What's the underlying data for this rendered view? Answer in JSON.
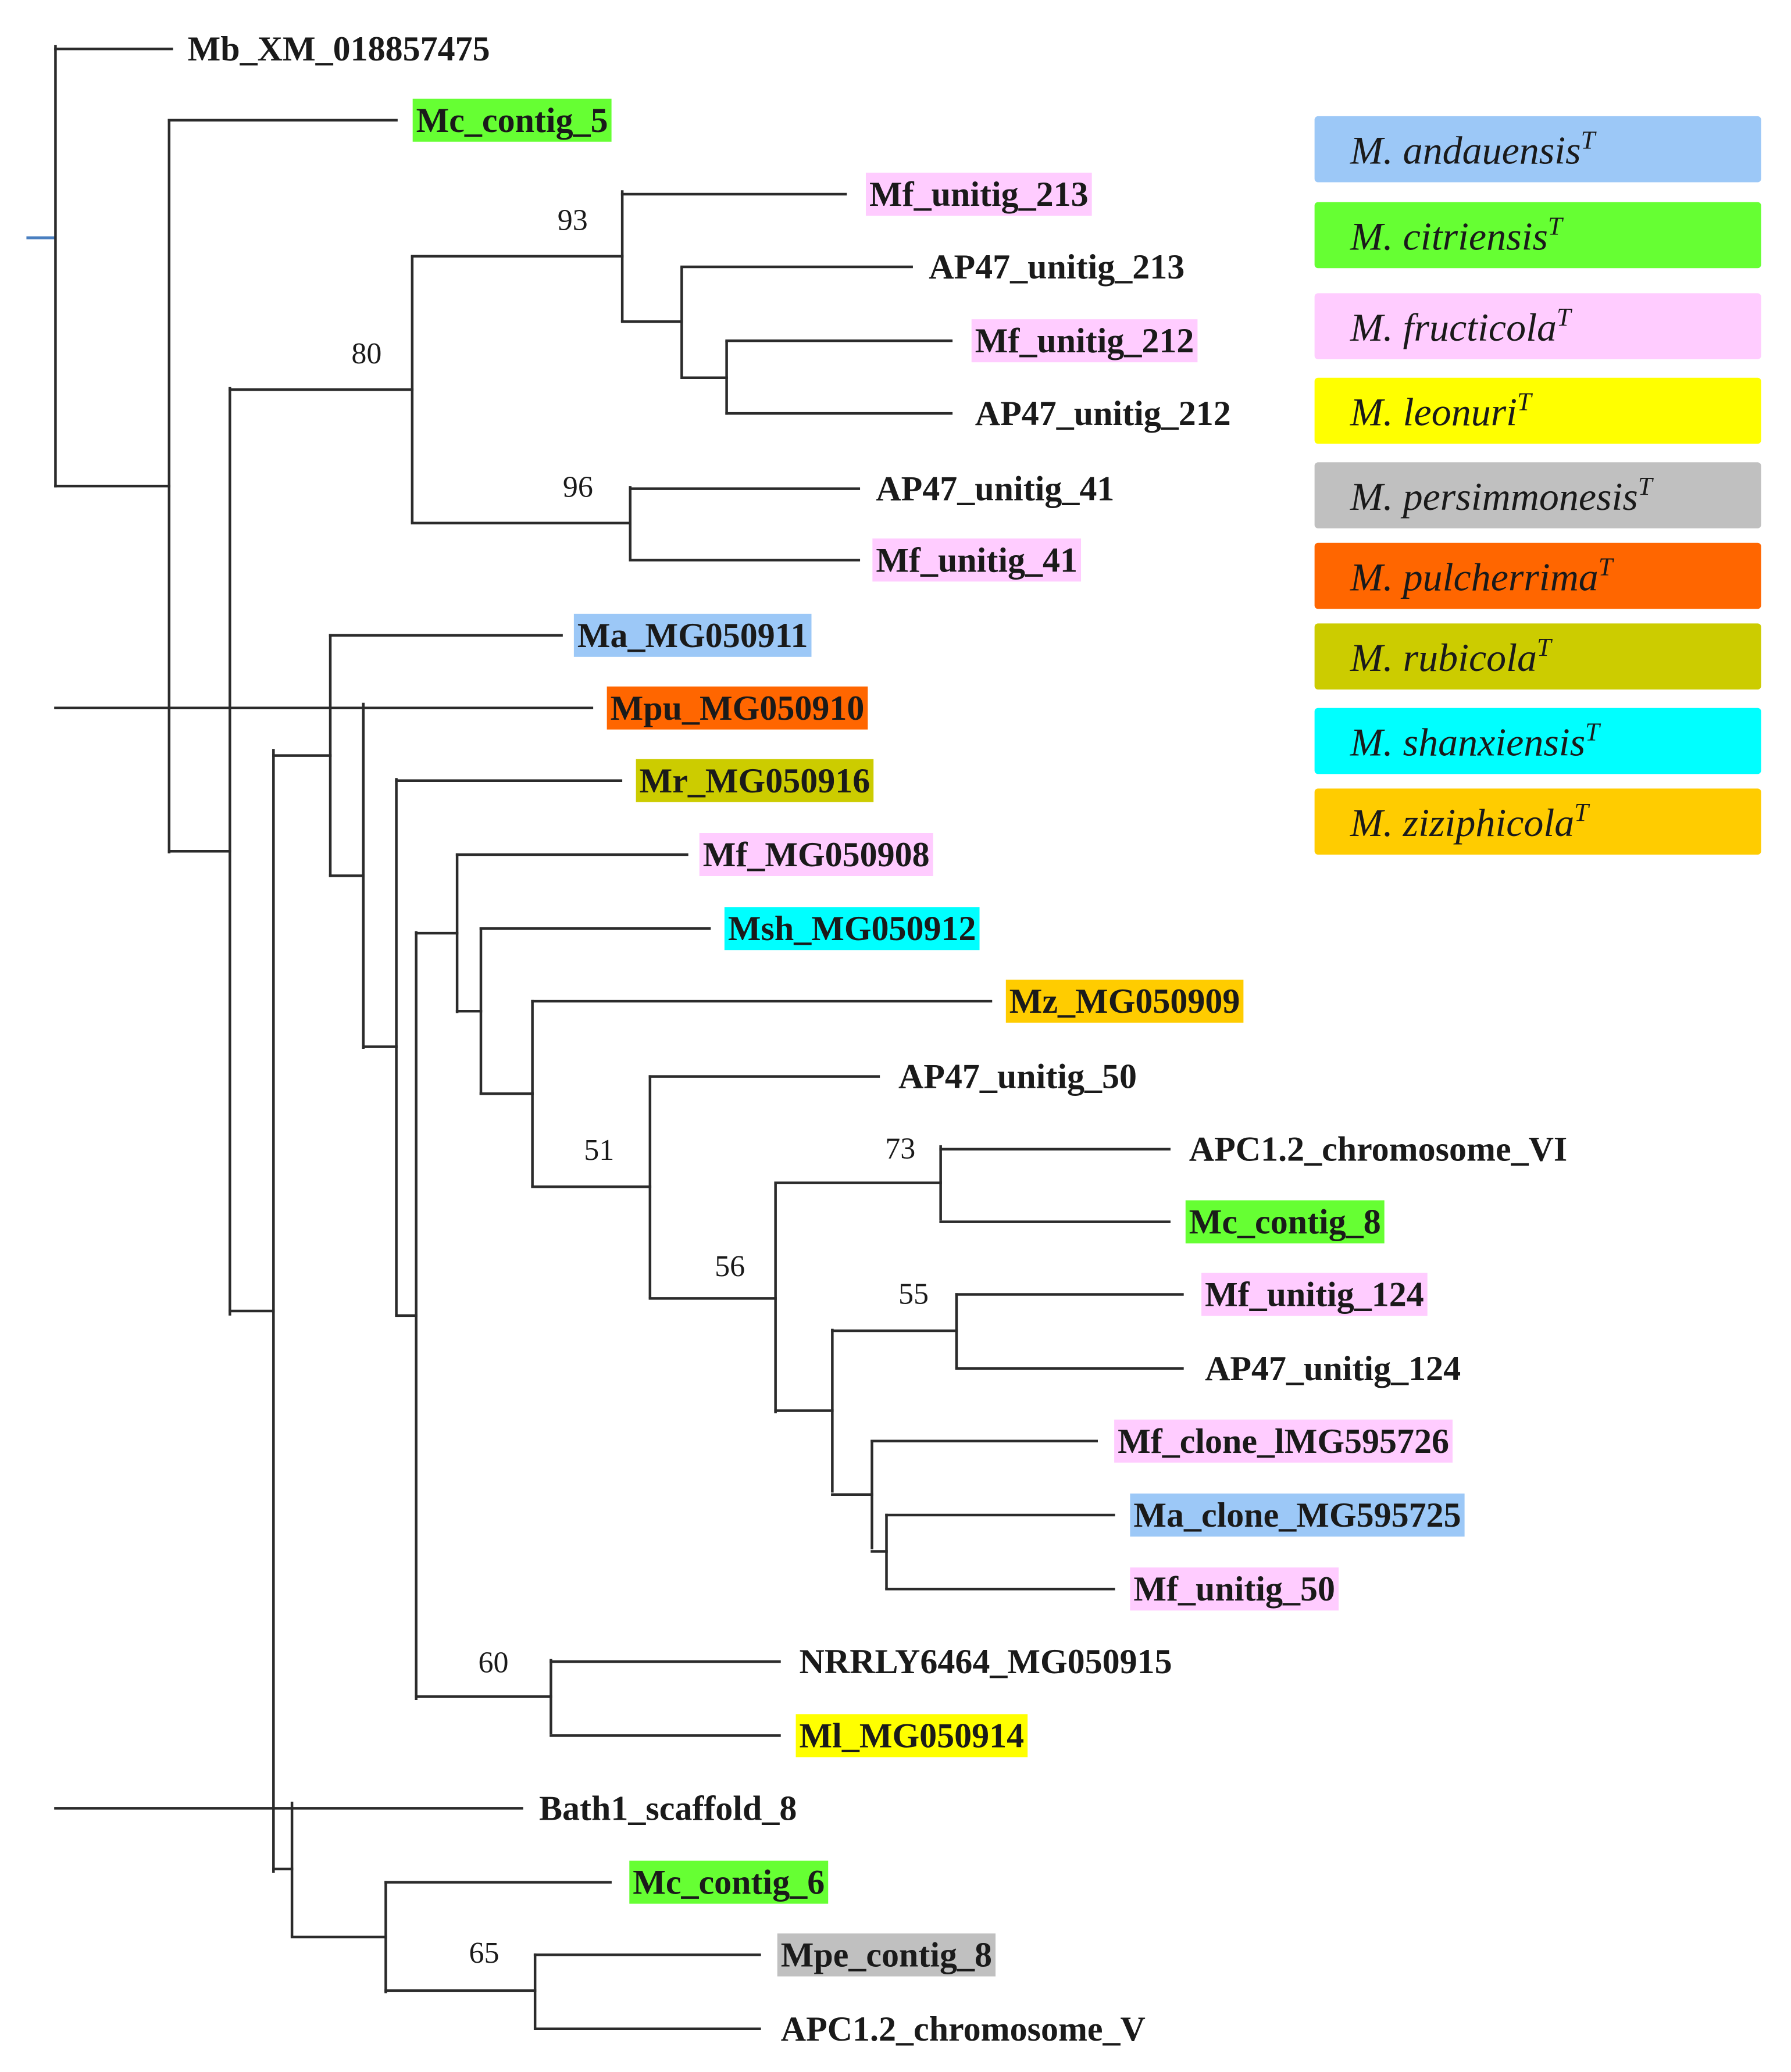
{
  "colors": {
    "andauensis": "#9cc8f7",
    "citriensis": "#66ff33",
    "fructicola": "#ffccff",
    "leonuri": "#ffff00",
    "persimmonesis": "#c0c0c0",
    "pulcherrima": "#ff6600",
    "rubicola": "#cccc00",
    "shanxiensis": "#00ffff",
    "ziziphicola": "#ffcc00"
  },
  "legend": [
    {
      "name": "M. andauensis",
      "sup": "T",
      "color_key": "andauensis"
    },
    {
      "name": "M. citriensis",
      "sup": "T",
      "color_key": "citriensis"
    },
    {
      "name": "M. fructicola",
      "sup": "T",
      "color_key": "fructicola"
    },
    {
      "name": "M. leonuri",
      "sup": "T",
      "color_key": "leonuri"
    },
    {
      "name": "M. persimmonesis",
      "sup": "T",
      "color_key": "persimmonesis"
    },
    {
      "name": "M. pulcherrima",
      "sup": "T",
      "color_key": "pulcherrima"
    },
    {
      "name": "M. rubicola",
      "sup": "T",
      "color_key": "rubicola"
    },
    {
      "name": "M. shanxiensis",
      "sup": "T",
      "color_key": "shanxiensis"
    },
    {
      "name": "M. ziziphicola",
      "sup": "T",
      "color_key": "ziziphicola"
    }
  ],
  "tips": [
    {
      "label": "Mb_XM_018857475",
      "color_key": null
    },
    {
      "label": "Mc_contig_5",
      "color_key": "citriensis"
    },
    {
      "label": "Mf_unitig_213",
      "color_key": "fructicola"
    },
    {
      "label": "AP47_unitig_213",
      "color_key": null
    },
    {
      "label": "Mf_unitig_212",
      "color_key": "fructicola"
    },
    {
      "label": "AP47_unitig_212",
      "color_key": null
    },
    {
      "label": "AP47_unitig_41",
      "color_key": null
    },
    {
      "label": "Mf_unitig_41",
      "color_key": "fructicola"
    },
    {
      "label": "Ma_MG050911",
      "color_key": "andauensis"
    },
    {
      "label": "Mpu_MG050910",
      "color_key": "pulcherrima"
    },
    {
      "label": "Mr_MG050916",
      "color_key": "rubicola"
    },
    {
      "label": "Mf_MG050908",
      "color_key": "fructicola"
    },
    {
      "label": "Msh_MG050912",
      "color_key": "shanxiensis"
    },
    {
      "label": "Mz_MG050909",
      "color_key": "ziziphicola"
    },
    {
      "label": "AP47_unitig_50",
      "color_key": null
    },
    {
      "label": "APC1.2_chromosome_VI",
      "color_key": null
    },
    {
      "label": "Mc_contig_8",
      "color_key": "citriensis"
    },
    {
      "label": "Mf_unitig_124",
      "color_key": "fructicola"
    },
    {
      "label": "AP47_unitig_124",
      "color_key": null
    },
    {
      "label": "Mf_clone_lMG595726",
      "color_key": "fructicola"
    },
    {
      "label": "Ma_clone_MG595725",
      "color_key": "andauensis"
    },
    {
      "label": "Mf_unitig_50",
      "color_key": "fructicola"
    },
    {
      "label": "NRRLY6464_MG050915",
      "color_key": null
    },
    {
      "label": "Ml_MG050914",
      "color_key": "leonuri"
    },
    {
      "label": "Bath1_scaffold_8",
      "color_key": null
    },
    {
      "label": "Mc_contig_6",
      "color_key": "citriensis"
    },
    {
      "label": "Mpe_contig_8",
      "color_key": "persimmonesis"
    },
    {
      "label": "APC1.2_chromosome_V",
      "color_key": null
    }
  ],
  "support_values": [
    "93",
    "80",
    "96",
    "51",
    "73",
    "56",
    "55",
    "60",
    "65"
  ]
}
